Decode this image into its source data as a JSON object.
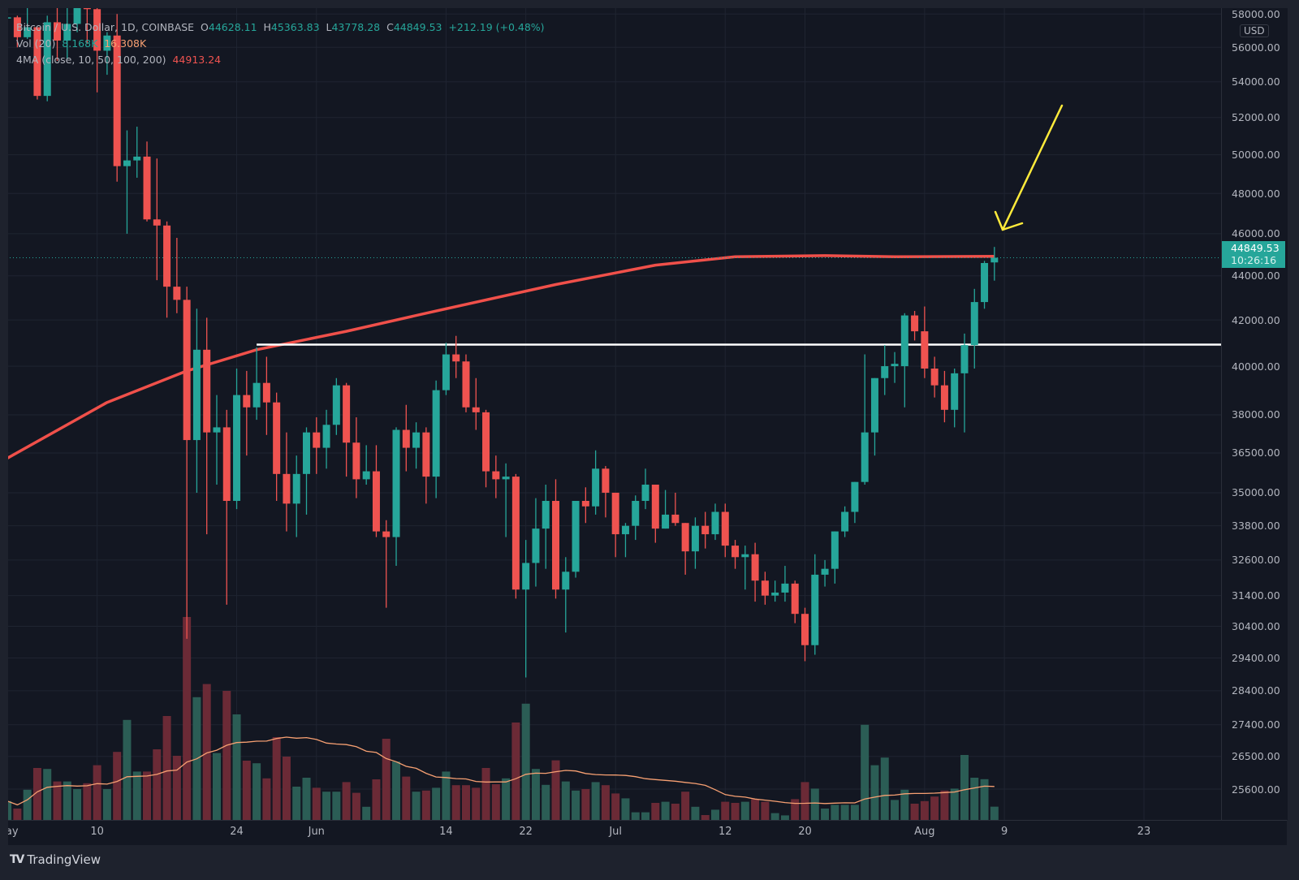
{
  "legend": {
    "symbol": "Bitcoin / U.S. Dollar, 1D, COINBASE",
    "o_label": "O",
    "o": "44628.11",
    "h_label": "H",
    "h": "45363.83",
    "l_label": "L",
    "l": "43778.28",
    "c_label": "C",
    "c": "44849.53",
    "change": "+212.19 (+0.48%)",
    "vol_label": "Vol (20)",
    "vol_value": "8.168K",
    "vol_ma_value": "16.308K",
    "ma_label": "4MA (close, 10, 50, 100, 200)",
    "ma_value": "44913.24"
  },
  "price_axis": {
    "currency": "USD",
    "ticks": [
      "58000.00",
      "56000.00",
      "54000.00",
      "52000.00",
      "50000.00",
      "48000.00",
      "46000.00",
      "44000.00",
      "42000.00",
      "40000.00",
      "38000.00",
      "36500.00",
      "35000.00",
      "33800.00",
      "32600.00",
      "31400.00",
      "30400.00",
      "29400.00",
      "28400.00",
      "27400.00",
      "26500.00",
      "25600.00"
    ],
    "last_price": "44849.53",
    "countdown": "10:26:16"
  },
  "time_axis": {
    "ticks": [
      {
        "label": "May",
        "date": "May 1"
      },
      {
        "label": "10",
        "date": "May 10"
      },
      {
        "label": "24",
        "date": "May 24"
      },
      {
        "label": "Jun",
        "date": "Jun 1"
      },
      {
        "label": "14",
        "date": "Jun 14"
      },
      {
        "label": "22",
        "date": "Jun 22"
      },
      {
        "label": "Jul",
        "date": "Jul 1"
      },
      {
        "label": "12",
        "date": "Jul 12"
      },
      {
        "label": "20",
        "date": "Jul 20"
      },
      {
        "label": "Aug",
        "date": "Aug 1"
      },
      {
        "label": "9",
        "date": "Aug 9"
      },
      {
        "label": "23",
        "date": "Aug 23"
      }
    ]
  },
  "footer": {
    "brand": "TradingView"
  },
  "colors": {
    "up": "#26a69a",
    "down": "#ef5350",
    "up_volume": "#2b5d55",
    "down_volume": "#6b2a36",
    "ma": "#f0504a",
    "volume_ma": "#f7a072",
    "support_line": "#ffffff",
    "annotation_arrow": "#ffeb3b",
    "background": "#131722"
  },
  "chart_data": {
    "type": "candlestick",
    "scale": "log",
    "ylim": [
      25000,
      58500
    ],
    "grid": true,
    "volume_unit": "K",
    "candles": [
      {
        "date": "May 1",
        "open": 57800,
        "high": 58500,
        "low": 57000,
        "close": 57800,
        "volume": 11.6
      },
      {
        "date": "May 2",
        "open": 57800,
        "high": 57900,
        "low": 56000,
        "close": 56600,
        "volume": 7
      },
      {
        "date": "May 3",
        "open": 56600,
        "high": 58900,
        "low": 56500,
        "close": 57200,
        "volume": 18.6
      },
      {
        "date": "May 4",
        "open": 57200,
        "high": 57200,
        "low": 53000,
        "close": 53200,
        "volume": 32
      },
      {
        "date": "May 5",
        "open": 53200,
        "high": 57900,
        "low": 52900,
        "close": 57500,
        "volume": 31.4
      },
      {
        "date": "May 6",
        "open": 57500,
        "high": 58400,
        "low": 55200,
        "close": 56400,
        "volume": 23.7
      },
      {
        "date": "May 7",
        "open": 56400,
        "high": 58700,
        "low": 55300,
        "close": 57400,
        "volume": 23.7
      },
      {
        "date": "May 8",
        "open": 57400,
        "high": 59500,
        "low": 56900,
        "close": 58900,
        "volume": 19
      },
      {
        "date": "May 9",
        "open": 58900,
        "high": 59300,
        "low": 56200,
        "close": 58300,
        "volume": 22.6
      },
      {
        "date": "May 10",
        "open": 58300,
        "high": 59600,
        "low": 53400,
        "close": 55800,
        "volume": 33.7
      },
      {
        "date": "May 11",
        "open": 55800,
        "high": 56900,
        "low": 54400,
        "close": 56700,
        "volume": 19
      },
      {
        "date": "May 12",
        "open": 56700,
        "high": 58000,
        "low": 48600,
        "close": 49400,
        "volume": 41.9
      },
      {
        "date": "May 13",
        "open": 49400,
        "high": 51300,
        "low": 46000,
        "close": 49700,
        "volume": 61.6
      },
      {
        "date": "May 14",
        "open": 49700,
        "high": 51500,
        "low": 48800,
        "close": 49900,
        "volume": 29.8
      },
      {
        "date": "May 15",
        "open": 49900,
        "high": 50700,
        "low": 46600,
        "close": 46700,
        "volume": 29.8
      },
      {
        "date": "May 16",
        "open": 46700,
        "high": 49800,
        "low": 43800,
        "close": 46400,
        "volume": 43.5
      },
      {
        "date": "May 17",
        "open": 46400,
        "high": 46600,
        "low": 42100,
        "close": 43500,
        "volume": 64
      },
      {
        "date": "May 18",
        "open": 43500,
        "high": 45800,
        "low": 42300,
        "close": 42900,
        "volume": 39.5
      },
      {
        "date": "May 19",
        "open": 42900,
        "high": 43500,
        "low": 30000,
        "close": 37000,
        "volume": 125
      },
      {
        "date": "May 20",
        "open": 37000,
        "high": 42500,
        "low": 35000,
        "close": 40700,
        "volume": 75.6
      },
      {
        "date": "May 21",
        "open": 40700,
        "high": 42100,
        "low": 33500,
        "close": 37300,
        "volume": 83.7
      },
      {
        "date": "May 22",
        "open": 37300,
        "high": 38800,
        "low": 35300,
        "close": 37500,
        "volume": 41.2
      },
      {
        "date": "May 23",
        "open": 37500,
        "high": 38200,
        "low": 31100,
        "close": 34700,
        "volume": 79.5
      },
      {
        "date": "May 24",
        "open": 34700,
        "high": 39900,
        "low": 34400,
        "close": 38800,
        "volume": 65
      },
      {
        "date": "May 25",
        "open": 38800,
        "high": 39800,
        "low": 36400,
        "close": 38300,
        "volume": 36.5
      },
      {
        "date": "May 26",
        "open": 38300,
        "high": 40800,
        "low": 37800,
        "close": 39300,
        "volume": 34.9
      },
      {
        "date": "May 27",
        "open": 39300,
        "high": 40400,
        "low": 37200,
        "close": 38500,
        "volume": 25.6
      },
      {
        "date": "May 28",
        "open": 38500,
        "high": 38900,
        "low": 34700,
        "close": 35700,
        "volume": 51
      },
      {
        "date": "May 29",
        "open": 35700,
        "high": 37300,
        "low": 33600,
        "close": 34600,
        "volume": 39
      },
      {
        "date": "May 30",
        "open": 34600,
        "high": 36400,
        "low": 33400,
        "close": 35700,
        "volume": 20.5
      },
      {
        "date": "May 31",
        "open": 35700,
        "high": 37500,
        "low": 34200,
        "close": 37300,
        "volume": 26
      },
      {
        "date": "Jun 1",
        "open": 37300,
        "high": 37900,
        "low": 35700,
        "close": 36700,
        "volume": 19.8
      },
      {
        "date": "Jun 2",
        "open": 36700,
        "high": 38200,
        "low": 35900,
        "close": 37600,
        "volume": 17.4
      },
      {
        "date": "Jun 3",
        "open": 37600,
        "high": 39500,
        "low": 37200,
        "close": 39200,
        "volume": 17.4
      },
      {
        "date": "Jun 4",
        "open": 39200,
        "high": 39300,
        "low": 35600,
        "close": 36900,
        "volume": 23.3
      },
      {
        "date": "Jun 5",
        "open": 36900,
        "high": 37900,
        "low": 34800,
        "close": 35500,
        "volume": 16.7
      },
      {
        "date": "Jun 6",
        "open": 35500,
        "high": 36800,
        "low": 35300,
        "close": 35800,
        "volume": 8.1
      },
      {
        "date": "Jun 7",
        "open": 35800,
        "high": 36800,
        "low": 33400,
        "close": 33600,
        "volume": 25
      },
      {
        "date": "Jun 8",
        "open": 33600,
        "high": 34000,
        "low": 31000,
        "close": 33400,
        "volume": 50
      },
      {
        "date": "Jun 9",
        "open": 33400,
        "high": 37500,
        "low": 32400,
        "close": 37400,
        "volume": 36
      },
      {
        "date": "Jun 10",
        "open": 37400,
        "high": 38400,
        "low": 35800,
        "close": 36700,
        "volume": 26.7
      },
      {
        "date": "Jun 11",
        "open": 36700,
        "high": 37700,
        "low": 35900,
        "close": 37300,
        "volume": 17.4
      },
      {
        "date": "Jun 12",
        "open": 37300,
        "high": 37500,
        "low": 34600,
        "close": 35600,
        "volume": 18.1
      },
      {
        "date": "Jun 13",
        "open": 35600,
        "high": 39400,
        "low": 34800,
        "close": 39000,
        "volume": 19.8
      },
      {
        "date": "Jun 14",
        "open": 39000,
        "high": 41000,
        "low": 38800,
        "close": 40500,
        "volume": 29.8
      },
      {
        "date": "Jun 15",
        "open": 40500,
        "high": 41300,
        "low": 39500,
        "close": 40200,
        "volume": 21.4
      },
      {
        "date": "Jun 16",
        "open": 40200,
        "high": 40500,
        "low": 38100,
        "close": 38300,
        "volume": 21.4
      },
      {
        "date": "Jun 17",
        "open": 38300,
        "high": 39500,
        "low": 37400,
        "close": 38100,
        "volume": 19.8
      },
      {
        "date": "Jun 18",
        "open": 38100,
        "high": 38200,
        "low": 35200,
        "close": 35800,
        "volume": 32
      },
      {
        "date": "Jun 19",
        "open": 35800,
        "high": 36400,
        "low": 34800,
        "close": 35500,
        "volume": 22
      },
      {
        "date": "Jun 20",
        "open": 35500,
        "high": 36100,
        "low": 33400,
        "close": 35600,
        "volume": 25.6
      },
      {
        "date": "Jun 21",
        "open": 35600,
        "high": 35700,
        "low": 31300,
        "close": 31600,
        "volume": 60
      },
      {
        "date": "Jun 22",
        "open": 31600,
        "high": 33300,
        "low": 28800,
        "close": 32500,
        "volume": 71.6
      },
      {
        "date": "Jun 23",
        "open": 32500,
        "high": 34800,
        "low": 31700,
        "close": 33700,
        "volume": 31.4
      },
      {
        "date": "Jun 24",
        "open": 33700,
        "high": 35300,
        "low": 32300,
        "close": 34700,
        "volume": 21.6
      },
      {
        "date": "Jun 25",
        "open": 34700,
        "high": 35500,
        "low": 31300,
        "close": 31600,
        "volume": 36.7
      },
      {
        "date": "Jun 26",
        "open": 31600,
        "high": 32700,
        "low": 30200,
        "close": 32200,
        "volume": 23.7
      },
      {
        "date": "Jun 27",
        "open": 32200,
        "high": 34700,
        "low": 32000,
        "close": 34700,
        "volume": 18.1
      },
      {
        "date": "Jun 28",
        "open": 34700,
        "high": 35200,
        "low": 33900,
        "close": 34500,
        "volume": 19
      },
      {
        "date": "Jun 29",
        "open": 34500,
        "high": 36600,
        "low": 34200,
        "close": 35900,
        "volume": 23.3
      },
      {
        "date": "Jun 30",
        "open": 35900,
        "high": 36000,
        "low": 34100,
        "close": 35000,
        "volume": 21.4
      },
      {
        "date": "Jul 1",
        "open": 35000,
        "high": 35000,
        "low": 32700,
        "close": 33500,
        "volume": 16.3
      },
      {
        "date": "Jul 2",
        "open": 33500,
        "high": 33900,
        "low": 32700,
        "close": 33800,
        "volume": 13.3
      },
      {
        "date": "Jul 3",
        "open": 33800,
        "high": 34900,
        "low": 33300,
        "close": 34700,
        "volume": 4.7
      },
      {
        "date": "Jul 4",
        "open": 34700,
        "high": 35900,
        "low": 34400,
        "close": 35300,
        "volume": 4.7
      },
      {
        "date": "Jul 5",
        "open": 35300,
        "high": 35300,
        "low": 33200,
        "close": 33700,
        "volume": 10.5
      },
      {
        "date": "Jul 6",
        "open": 33700,
        "high": 35100,
        "low": 33700,
        "close": 34200,
        "volume": 11.2
      },
      {
        "date": "Jul 7",
        "open": 34200,
        "high": 35000,
        "low": 33800,
        "close": 33900,
        "volume": 10
      },
      {
        "date": "Jul 8",
        "open": 33900,
        "high": 33900,
        "low": 32100,
        "close": 32900,
        "volume": 17.4
      },
      {
        "date": "Jul 9",
        "open": 32900,
        "high": 34100,
        "low": 32300,
        "close": 33800,
        "volume": 8.1
      },
      {
        "date": "Jul 10",
        "open": 33800,
        "high": 34300,
        "low": 33000,
        "close": 33500,
        "volume": 3
      },
      {
        "date": "Jul 11",
        "open": 33500,
        "high": 34600,
        "low": 33300,
        "close": 34300,
        "volume": 6.3
      },
      {
        "date": "Jul 12",
        "open": 34300,
        "high": 34600,
        "low": 32700,
        "close": 33100,
        "volume": 11.2
      },
      {
        "date": "Jul 13",
        "open": 33100,
        "high": 33300,
        "low": 32300,
        "close": 32700,
        "volume": 10.5
      },
      {
        "date": "Jul 14",
        "open": 32700,
        "high": 33100,
        "low": 31600,
        "close": 32800,
        "volume": 11.2
      },
      {
        "date": "Jul 15",
        "open": 32800,
        "high": 33200,
        "low": 31200,
        "close": 31900,
        "volume": 12.8
      },
      {
        "date": "Jul 16",
        "open": 31900,
        "high": 32200,
        "low": 31100,
        "close": 31400,
        "volume": 11.2
      },
      {
        "date": "Jul 17",
        "open": 31400,
        "high": 31900,
        "low": 31200,
        "close": 31500,
        "volume": 4.2
      },
      {
        "date": "Jul 18",
        "open": 31500,
        "high": 32400,
        "low": 31200,
        "close": 31800,
        "volume": 2.8
      },
      {
        "date": "Jul 19",
        "open": 31800,
        "high": 31900,
        "low": 30500,
        "close": 30800,
        "volume": 12.8
      },
      {
        "date": "Jul 20",
        "open": 30800,
        "high": 31000,
        "low": 29300,
        "close": 29800,
        "volume": 23.3
      },
      {
        "date": "Jul 21",
        "open": 29800,
        "high": 32800,
        "low": 29500,
        "close": 32100,
        "volume": 19.3
      },
      {
        "date": "Jul 22",
        "open": 32100,
        "high": 32600,
        "low": 31700,
        "close": 32300,
        "volume": 7
      },
      {
        "date": "Jul 23",
        "open": 32300,
        "high": 33600,
        "low": 31800,
        "close": 33600,
        "volume": 9.3
      },
      {
        "date": "Jul 24",
        "open": 33600,
        "high": 34500,
        "low": 33400,
        "close": 34300,
        "volume": 9.3
      },
      {
        "date": "Jul 25",
        "open": 34300,
        "high": 35400,
        "low": 33900,
        "close": 35400,
        "volume": 9.3
      },
      {
        "date": "Jul 26",
        "open": 35400,
        "high": 40500,
        "low": 35300,
        "close": 37300,
        "volume": 58.6
      },
      {
        "date": "Jul 27",
        "open": 37300,
        "high": 39500,
        "low": 36400,
        "close": 39500,
        "volume": 33.7
      },
      {
        "date": "Jul 28",
        "open": 39500,
        "high": 40900,
        "low": 38800,
        "close": 40000,
        "volume": 38.4
      },
      {
        "date": "Jul 29",
        "open": 40000,
        "high": 40600,
        "low": 39300,
        "close": 40100,
        "volume": 12.3
      },
      {
        "date": "Jul 30",
        "open": 40000,
        "high": 42300,
        "low": 38300,
        "close": 42200,
        "volume": 18.6
      },
      {
        "date": "Jul 31",
        "open": 42200,
        "high": 42400,
        "low": 41100,
        "close": 41500,
        "volume": 10
      },
      {
        "date": "Aug 1",
        "open": 41500,
        "high": 42600,
        "low": 39500,
        "close": 39900,
        "volume": 11.6
      },
      {
        "date": "Aug 2",
        "open": 39900,
        "high": 40400,
        "low": 38700,
        "close": 39200,
        "volume": 14.4
      },
      {
        "date": "Aug 3",
        "open": 39200,
        "high": 39800,
        "low": 37700,
        "close": 38200,
        "volume": 18.1
      },
      {
        "date": "Aug 4",
        "open": 38200,
        "high": 39900,
        "low": 37500,
        "close": 39700,
        "volume": 19.3
      },
      {
        "date": "Aug 5",
        "open": 39700,
        "high": 41400,
        "low": 37300,
        "close": 40900,
        "volume": 40
      },
      {
        "date": "Aug 6",
        "open": 40900,
        "high": 43400,
        "low": 39900,
        "close": 42800,
        "volume": 26
      },
      {
        "date": "Aug 7",
        "open": 42800,
        "high": 44700,
        "low": 42500,
        "close": 44600,
        "volume": 25.1
      },
      {
        "date": "Aug 8",
        "open": 44628.11,
        "high": 45363.83,
        "low": 43778.28,
        "close": 44849.53,
        "volume": 8.168
      }
    ],
    "ma_line": [
      {
        "date": "May 1",
        "value": 36300
      },
      {
        "date": "May 11",
        "value": 38500
      },
      {
        "date": "May 19",
        "value": 39800
      },
      {
        "date": "May 26",
        "value": 40700
      },
      {
        "date": "Jun 4",
        "value": 41500
      },
      {
        "date": "Jun 12",
        "value": 42300
      },
      {
        "date": "Jun 25",
        "value": 43600
      },
      {
        "date": "Jul 5",
        "value": 44500
      },
      {
        "date": "Jul 13",
        "value": 44900
      },
      {
        "date": "Jul 22",
        "value": 44950
      },
      {
        "date": "Jul 29",
        "value": 44900
      },
      {
        "date": "Aug 8",
        "value": 44913.24
      }
    ],
    "volume_ma_period": 20,
    "horizontal_line": {
      "price": 40920,
      "from": "May 26"
    }
  }
}
